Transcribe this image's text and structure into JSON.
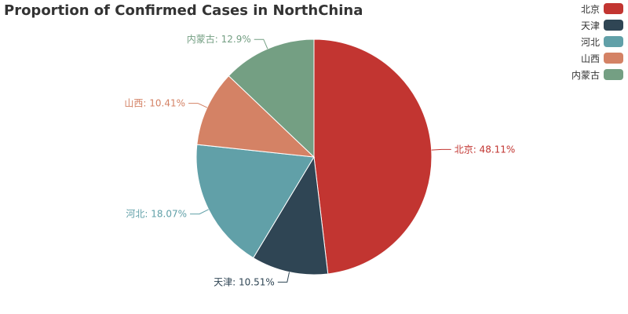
{
  "chart_data": {
    "type": "pie",
    "title": "Proportion of Confirmed Cases in NorthChina",
    "categories": [
      "北京",
      "天津",
      "河北",
      "山西",
      "内蒙古"
    ],
    "values": [
      48.11,
      10.51,
      18.07,
      10.41,
      12.9
    ],
    "labels": [
      "北京: 48.11%",
      "天津: 10.51%",
      "河北: 18.07%",
      "山西: 10.41%",
      "内蒙古: 12.9%"
    ],
    "colors": [
      "#c23531",
      "#2f4554",
      "#61a0a8",
      "#d48265",
      "#749f83"
    ],
    "legend_position": "top-right"
  }
}
